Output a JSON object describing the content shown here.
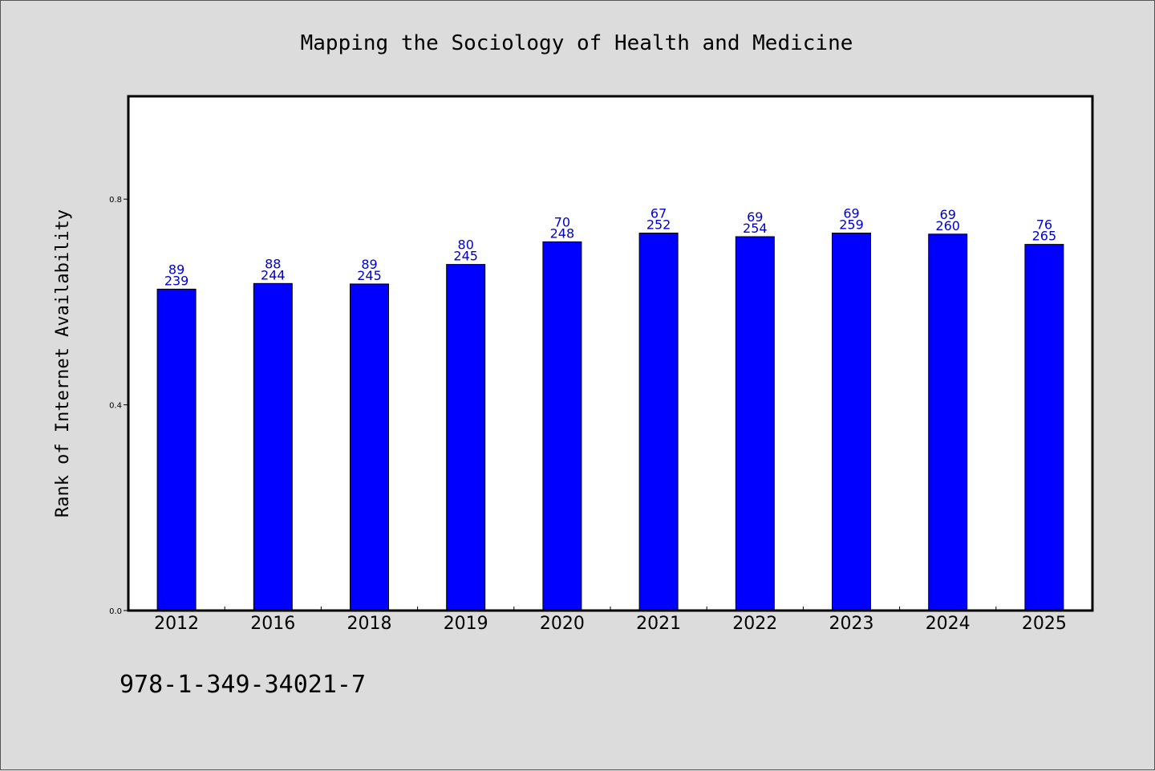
{
  "chart_data": {
    "type": "bar",
    "title": "Mapping the Sociology of Health and Medicine",
    "xlabel": "",
    "ylabel": "Rank of Internet Availability",
    "categories": [
      "2012",
      "2016",
      "2018",
      "2019",
      "2020",
      "2021",
      "2022",
      "2023",
      "2024",
      "2025"
    ],
    "values": [
      0.625,
      0.636,
      0.635,
      0.673,
      0.717,
      0.734,
      0.727,
      0.734,
      0.732,
      0.712
    ],
    "labels_top": [
      "89",
      "88",
      "89",
      "80",
      "70",
      "67",
      "69",
      "69",
      "69",
      "76"
    ],
    "labels_bottom": [
      "239",
      "244",
      "245",
      "245",
      "248",
      "252",
      "254",
      "259",
      "260",
      "265"
    ],
    "yticks": [
      0.0,
      0.4,
      0.8
    ],
    "ytick_labels": [
      "0.0",
      "0.4",
      "0.8"
    ],
    "ylim": [
      0,
      1.0
    ],
    "grid": false,
    "bar_color": "#0000ff",
    "label_color": "#0000cc"
  },
  "footer": {
    "isbn": "978-1-349-34021-7"
  }
}
